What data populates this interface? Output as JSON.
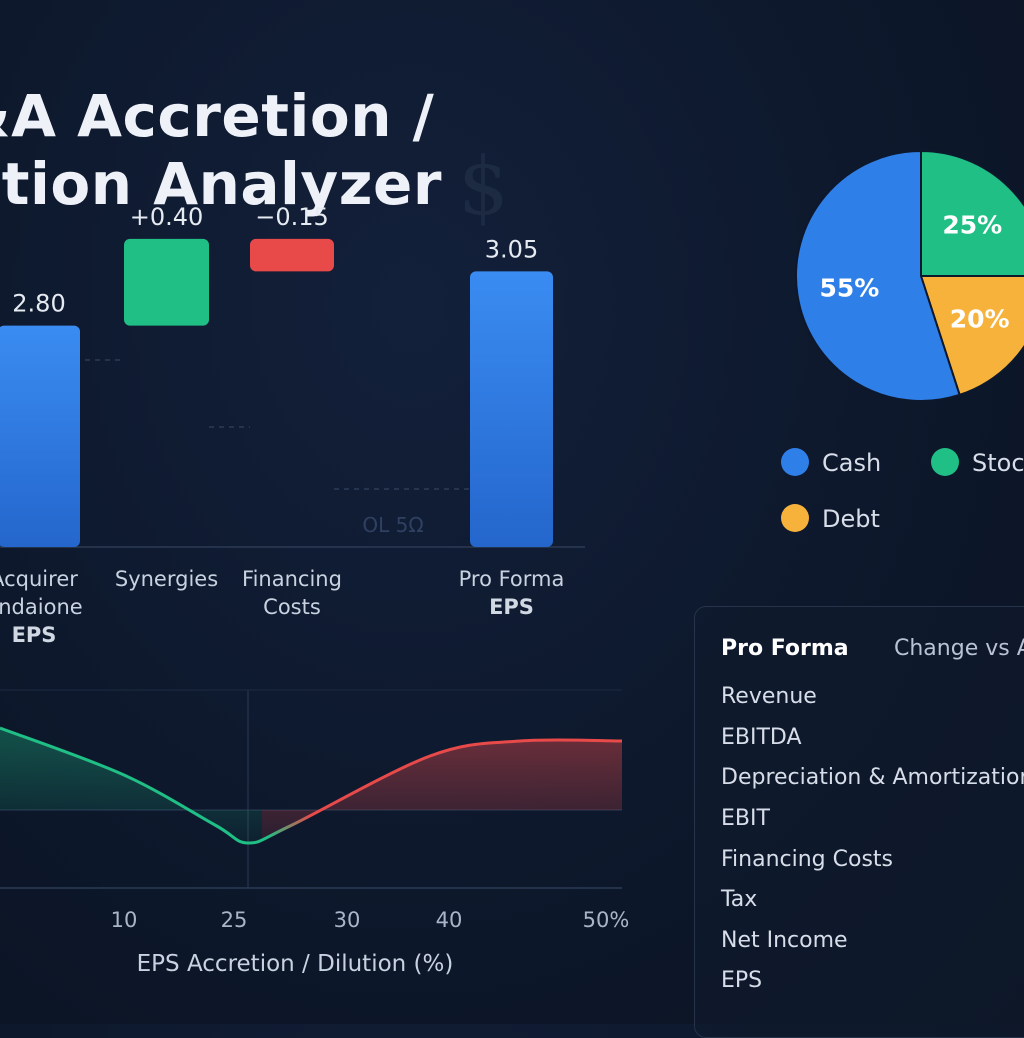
{
  "title": {
    "line1": "&A Accretion /",
    "line2": "ution Analyzer"
  },
  "decor": {
    "dollar": "$",
    "stray_text": "OL 5Ω"
  },
  "colors": {
    "blue": "#2f7fe8",
    "green": "#1fbf85",
    "red": "#e84a4a",
    "yellow": "#f7b23b",
    "bg": "#0d182c"
  },
  "chart_data": [
    {
      "type": "bar",
      "subtype": "waterfall",
      "categories": [
        "Acquirer\nendaione\nEPS",
        "Synergies",
        "Financing\nCosts",
        "Pro Forma\nEPS"
      ],
      "values": [
        2.8,
        0.4,
        -0.15,
        3.05
      ],
      "data_labels": [
        "2.80",
        "+0.40",
        "−0.15",
        "3.05"
      ],
      "colors": [
        "#2f7fe8",
        "#1fbf85",
        "#e84a4a",
        "#2f7fe8"
      ]
    },
    {
      "type": "pie",
      "labels": [
        "Cash",
        "Stoc",
        "Debt"
      ],
      "values": [
        55,
        25,
        20
      ],
      "data_labels": [
        "55%",
        "25%",
        "20%"
      ],
      "colors": [
        "#2f7fe8",
        "#1fbf85",
        "#f7b23b"
      ],
      "legend": "bottom"
    },
    {
      "type": "area",
      "xlabel": "EPS Accretion / Dilution (%)",
      "tick_labels": [
        "10",
        "25",
        "30",
        "40",
        "50%"
      ],
      "x": [
        0,
        10,
        20,
        25,
        30,
        40,
        50
      ],
      "y": [
        4.0,
        2.5,
        -1.0,
        -2.5,
        -1.3,
        3.0,
        4.0
      ],
      "ylim": [
        -3,
        5
      ]
    }
  ],
  "table": {
    "headers": [
      "Pro Forma",
      "Change vs A"
    ],
    "rows": [
      "Revenue",
      "EBITDA",
      "Depreciation & Amortization",
      "EBIT",
      "Financing Costs",
      "Tax",
      "Net Income",
      "EPS"
    ]
  }
}
